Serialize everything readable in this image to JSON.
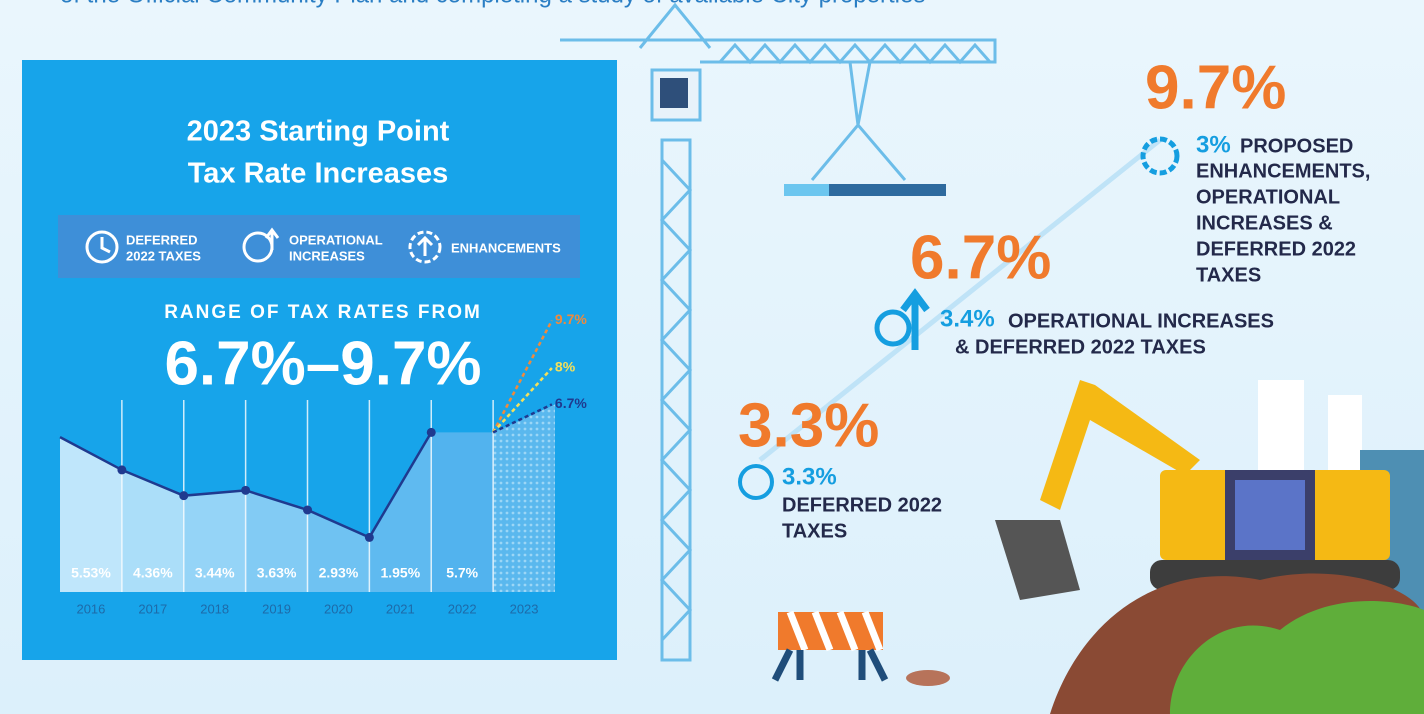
{
  "intro_text": "of the Official Community Plan and completing a study of available City properties",
  "panel": {
    "title_lines": [
      "2023 Starting Point",
      "Tax Rate Increases"
    ],
    "legend": [
      {
        "lines": [
          "DEFERRED",
          "2022 TAXES"
        ]
      },
      {
        "lines": [
          "OPERATIONAL",
          "INCREASES"
        ]
      },
      {
        "lines": [
          "ENHANCEMENTS"
        ]
      }
    ],
    "range_label": "RANGE OF TAX RATES FROM",
    "range_value": "6.7%–9.7%"
  },
  "chart_data": {
    "type": "area",
    "categories": [
      "2016",
      "2017",
      "2018",
      "2019",
      "2020",
      "2021",
      "2022",
      "2023"
    ],
    "values": [
      5.53,
      4.36,
      3.44,
      3.63,
      2.93,
      1.95,
      5.7,
      null
    ],
    "value_labels": [
      "5.53%",
      "4.36%",
      "3.44%",
      "3.63%",
      "2.93%",
      "1.95%",
      "5.7%",
      null
    ],
    "line_color": "#1f3a8f",
    "projections": {
      "values": [
        9.7,
        8,
        6.7
      ],
      "value_labels": [
        "9.7%",
        "8%",
        "6.7%"
      ],
      "colors": [
        "#f08a3c",
        "#f5e05a",
        "#1f3a8f"
      ]
    }
  },
  "scenarios": [
    {
      "total": "9.7%",
      "part": "3%",
      "lines": [
        "PROPOSED",
        "ENHANCEMENTS,",
        "OPERATIONAL",
        "INCREASES &",
        "DEFERRED 2022",
        "TAXES"
      ]
    },
    {
      "total": "6.7%",
      "part": "3.4%",
      "lines": [
        "OPERATIONAL INCREASES",
        "& DEFERRED 2022 TAXES"
      ]
    },
    {
      "total": "3.3%",
      "part": "3.3%",
      "lines": [
        "DEFERRED 2022",
        "TAXES"
      ]
    }
  ]
}
